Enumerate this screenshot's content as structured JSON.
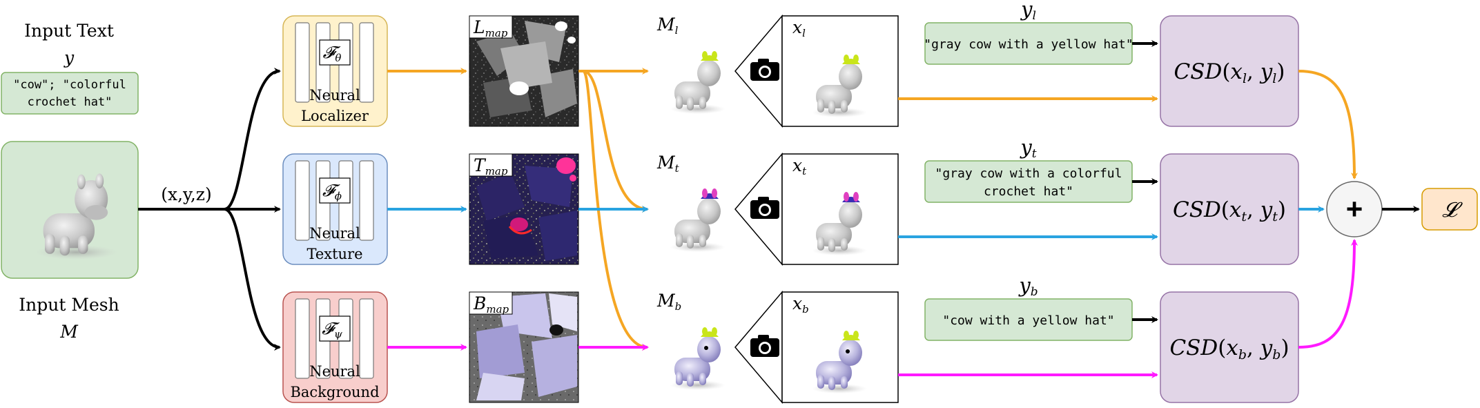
{
  "input_text": {
    "title": "Input Text",
    "symbol": "y",
    "prompt_line1": "\"cow\"; \"colorful",
    "prompt_line2": "crochet hat\""
  },
  "input_mesh": {
    "title": "Input Mesh",
    "symbol": "M"
  },
  "coords_label": "(x,y,z)",
  "networks": [
    {
      "symbol": "𝓕",
      "sub": "θ",
      "line1": "Neural",
      "line2": "Localizer"
    },
    {
      "symbol": "𝓕",
      "sub": "ϕ",
      "line1": "Neural",
      "line2": "Texture"
    },
    {
      "symbol": "𝓕",
      "sub": "ψ",
      "line1": "Neural",
      "line2": "Background"
    }
  ],
  "maps": [
    {
      "base": "L",
      "sub": "map"
    },
    {
      "base": "T",
      "sub": "map"
    },
    {
      "base": "B",
      "sub": "map"
    }
  ],
  "meshes": [
    {
      "base": "M",
      "sub": "l"
    },
    {
      "base": "M",
      "sub": "t"
    },
    {
      "base": "M",
      "sub": "b"
    }
  ],
  "renders": [
    {
      "base": "x",
      "sub": "l"
    },
    {
      "base": "x",
      "sub": "t"
    },
    {
      "base": "x",
      "sub": "b"
    }
  ],
  "prompts": [
    {
      "label_base": "y",
      "label_sub": "l",
      "lines": [
        "\"gray cow with a yellow hat\""
      ]
    },
    {
      "label_base": "y",
      "label_sub": "t",
      "lines": [
        "\"gray cow with a colorful",
        "crochet hat\""
      ]
    },
    {
      "label_base": "y",
      "label_sub": "b",
      "lines": [
        "\"cow with a yellow hat\""
      ]
    }
  ],
  "csd": [
    {
      "func": "CSD",
      "open": "(",
      "x": "x",
      "xsub": "l",
      "comma": ", ",
      "y": "y",
      "ysub": "l",
      "close": ")"
    },
    {
      "func": "CSD",
      "open": "(",
      "x": "x",
      "xsub": "t",
      "comma": ", ",
      "y": "y",
      "ysub": "t",
      "close": ")"
    },
    {
      "func": "CSD",
      "open": "(",
      "x": "x",
      "xsub": "b",
      "comma": ", ",
      "y": "y",
      "ysub": "b",
      "close": ")"
    }
  ],
  "sum_symbol": "+",
  "loss_symbol": "𝓛",
  "colors": {
    "localizer": "#f5a623",
    "texture": "#29a3e0",
    "background": "#ff1aff",
    "black": "#000000",
    "green_fill": "#d5e8d4",
    "green_stroke": "#82b366",
    "yellow_fill": "#fff2cc",
    "yellow_stroke": "#d6b656",
    "blue_fill": "#dae8fc",
    "blue_stroke": "#6c8ebf",
    "red_fill": "#f8cecc",
    "red_stroke": "#b85450",
    "purple_fill": "#e1d5e7",
    "purple_stroke": "#9673a6",
    "orange_fill": "#ffe6cc",
    "orange_stroke": "#d79b00"
  }
}
